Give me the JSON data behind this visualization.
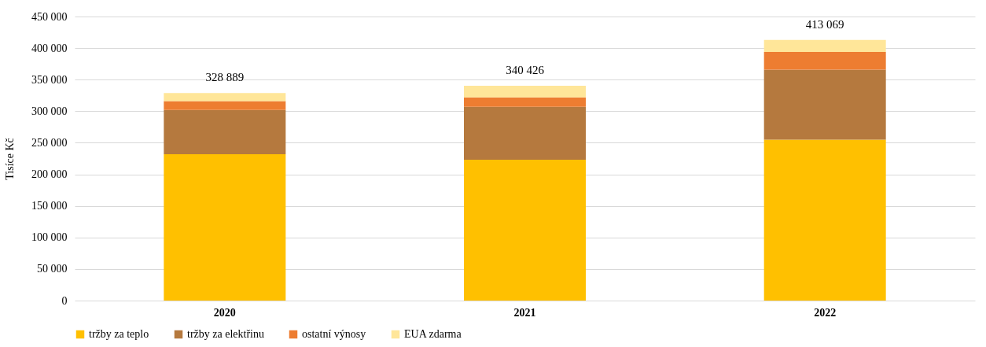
{
  "chart_data": {
    "type": "bar",
    "stacked": true,
    "ylabel": "Tisíce Kč",
    "categories": [
      "2020",
      "2021",
      "2022"
    ],
    "series": [
      {
        "name": "tržby za teplo",
        "color": "#ffc000",
        "values": [
          232000,
          223000,
          255000
        ]
      },
      {
        "name": "tržby za elektřinu",
        "color": "#b5793e",
        "values": [
          70000,
          84000,
          111000
        ]
      },
      {
        "name": "ostatní výnosy",
        "color": "#ed7d31",
        "values": [
          14000,
          15000,
          28000
        ]
      },
      {
        "name": "EUA zdarma",
        "color": "#ffe699",
        "values": [
          12889,
          18426,
          19069
        ]
      }
    ],
    "totals": [
      "328 889",
      "340 426",
      "413 069"
    ],
    "ylim": [
      0,
      450000
    ],
    "yticks": [
      {
        "value": 0,
        "label": "0"
      },
      {
        "value": 50000,
        "label": "50 000"
      },
      {
        "value": 100000,
        "label": "100 000"
      },
      {
        "value": 150000,
        "label": "150 000"
      },
      {
        "value": 200000,
        "label": "200 000"
      },
      {
        "value": 250000,
        "label": "250 000"
      },
      {
        "value": 300000,
        "label": "300 000"
      },
      {
        "value": 350000,
        "label": "350 000"
      },
      {
        "value": 400000,
        "label": "400 000"
      },
      {
        "value": 450000,
        "label": "450 000"
      }
    ],
    "grid": "y",
    "legend": "bottom"
  }
}
